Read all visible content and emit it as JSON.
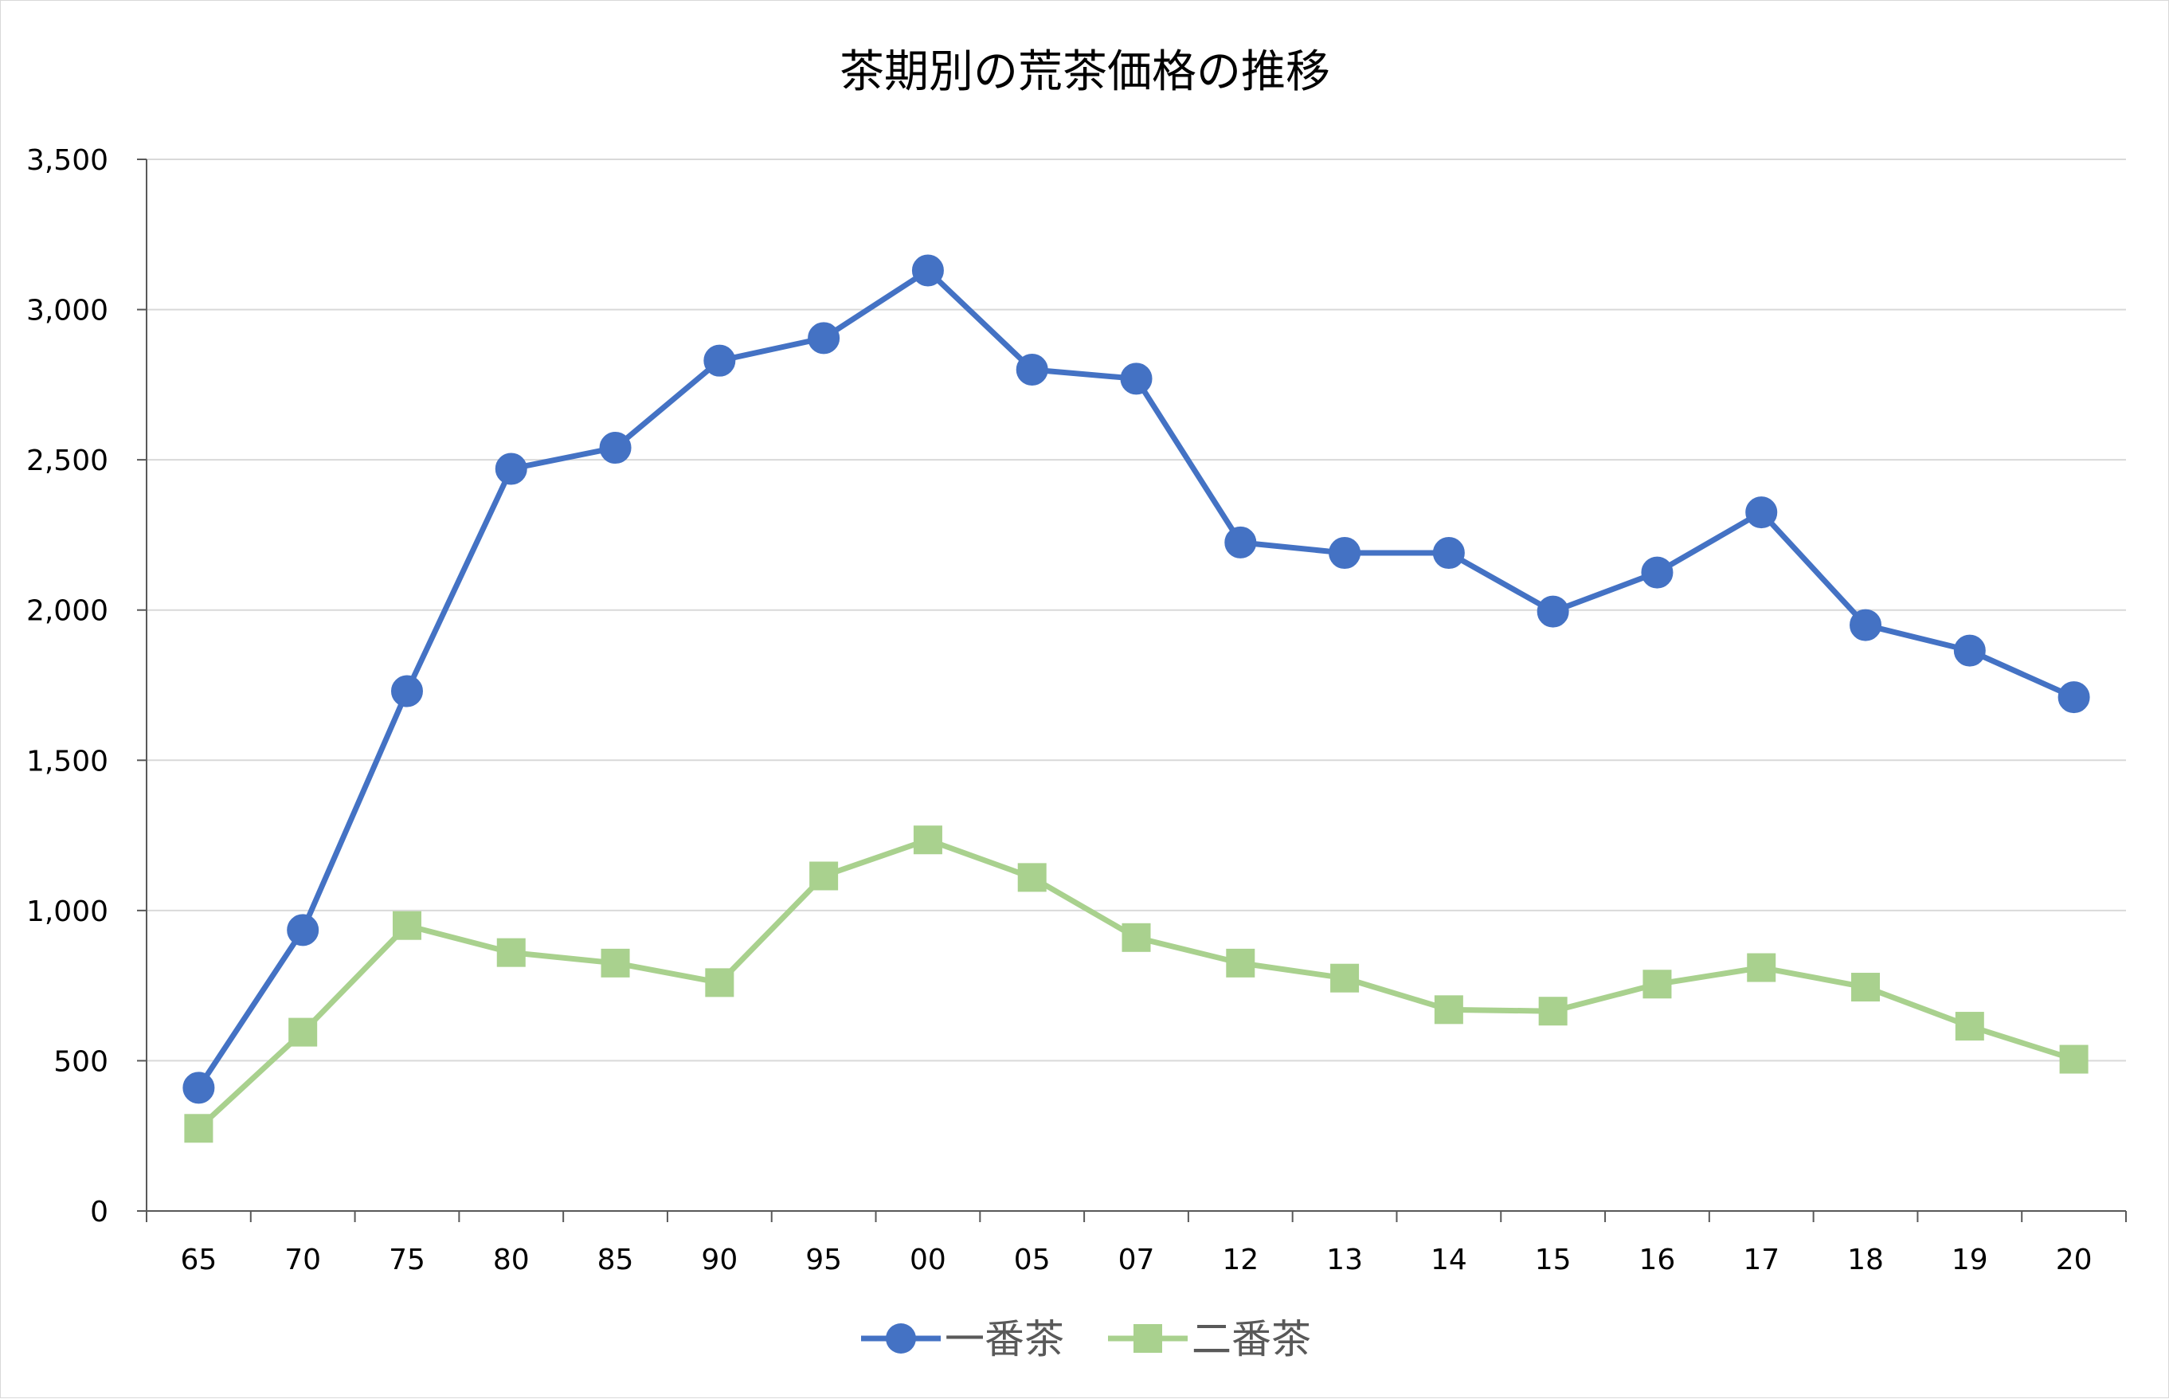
{
  "chart_data": {
    "type": "line",
    "title": "茶期別の荒茶価格の推移",
    "xlabel": "",
    "ylabel": "",
    "categories": [
      "65",
      "70",
      "75",
      "80",
      "85",
      "90",
      "95",
      "00",
      "05",
      "07",
      "12",
      "13",
      "14",
      "15",
      "16",
      "17",
      "18",
      "19",
      "20"
    ],
    "ylim": [
      0,
      3500
    ],
    "y_ticks": [
      0,
      500,
      1000,
      1500,
      2000,
      2500,
      3000,
      3500
    ],
    "y_tick_labels": [
      "0",
      "500",
      "1,000",
      "1,500",
      "2,000",
      "2,500",
      "3,000",
      "3,500"
    ],
    "grid": true,
    "legend_position": "bottom",
    "series": [
      {
        "name": "一番茶",
        "marker": "circle",
        "color": "#4472C4",
        "values": [
          410,
          935,
          1730,
          2470,
          2540,
          2830,
          2905,
          3130,
          2800,
          2770,
          2225,
          2190,
          2190,
          1995,
          2125,
          2325,
          1950,
          1865,
          1710
        ]
      },
      {
        "name": "二番茶",
        "marker": "square",
        "color": "#A9D18E",
        "values": [
          275,
          595,
          950,
          860,
          825,
          760,
          1115,
          1235,
          1110,
          910,
          825,
          775,
          670,
          665,
          755,
          810,
          745,
          615,
          505
        ]
      }
    ]
  }
}
